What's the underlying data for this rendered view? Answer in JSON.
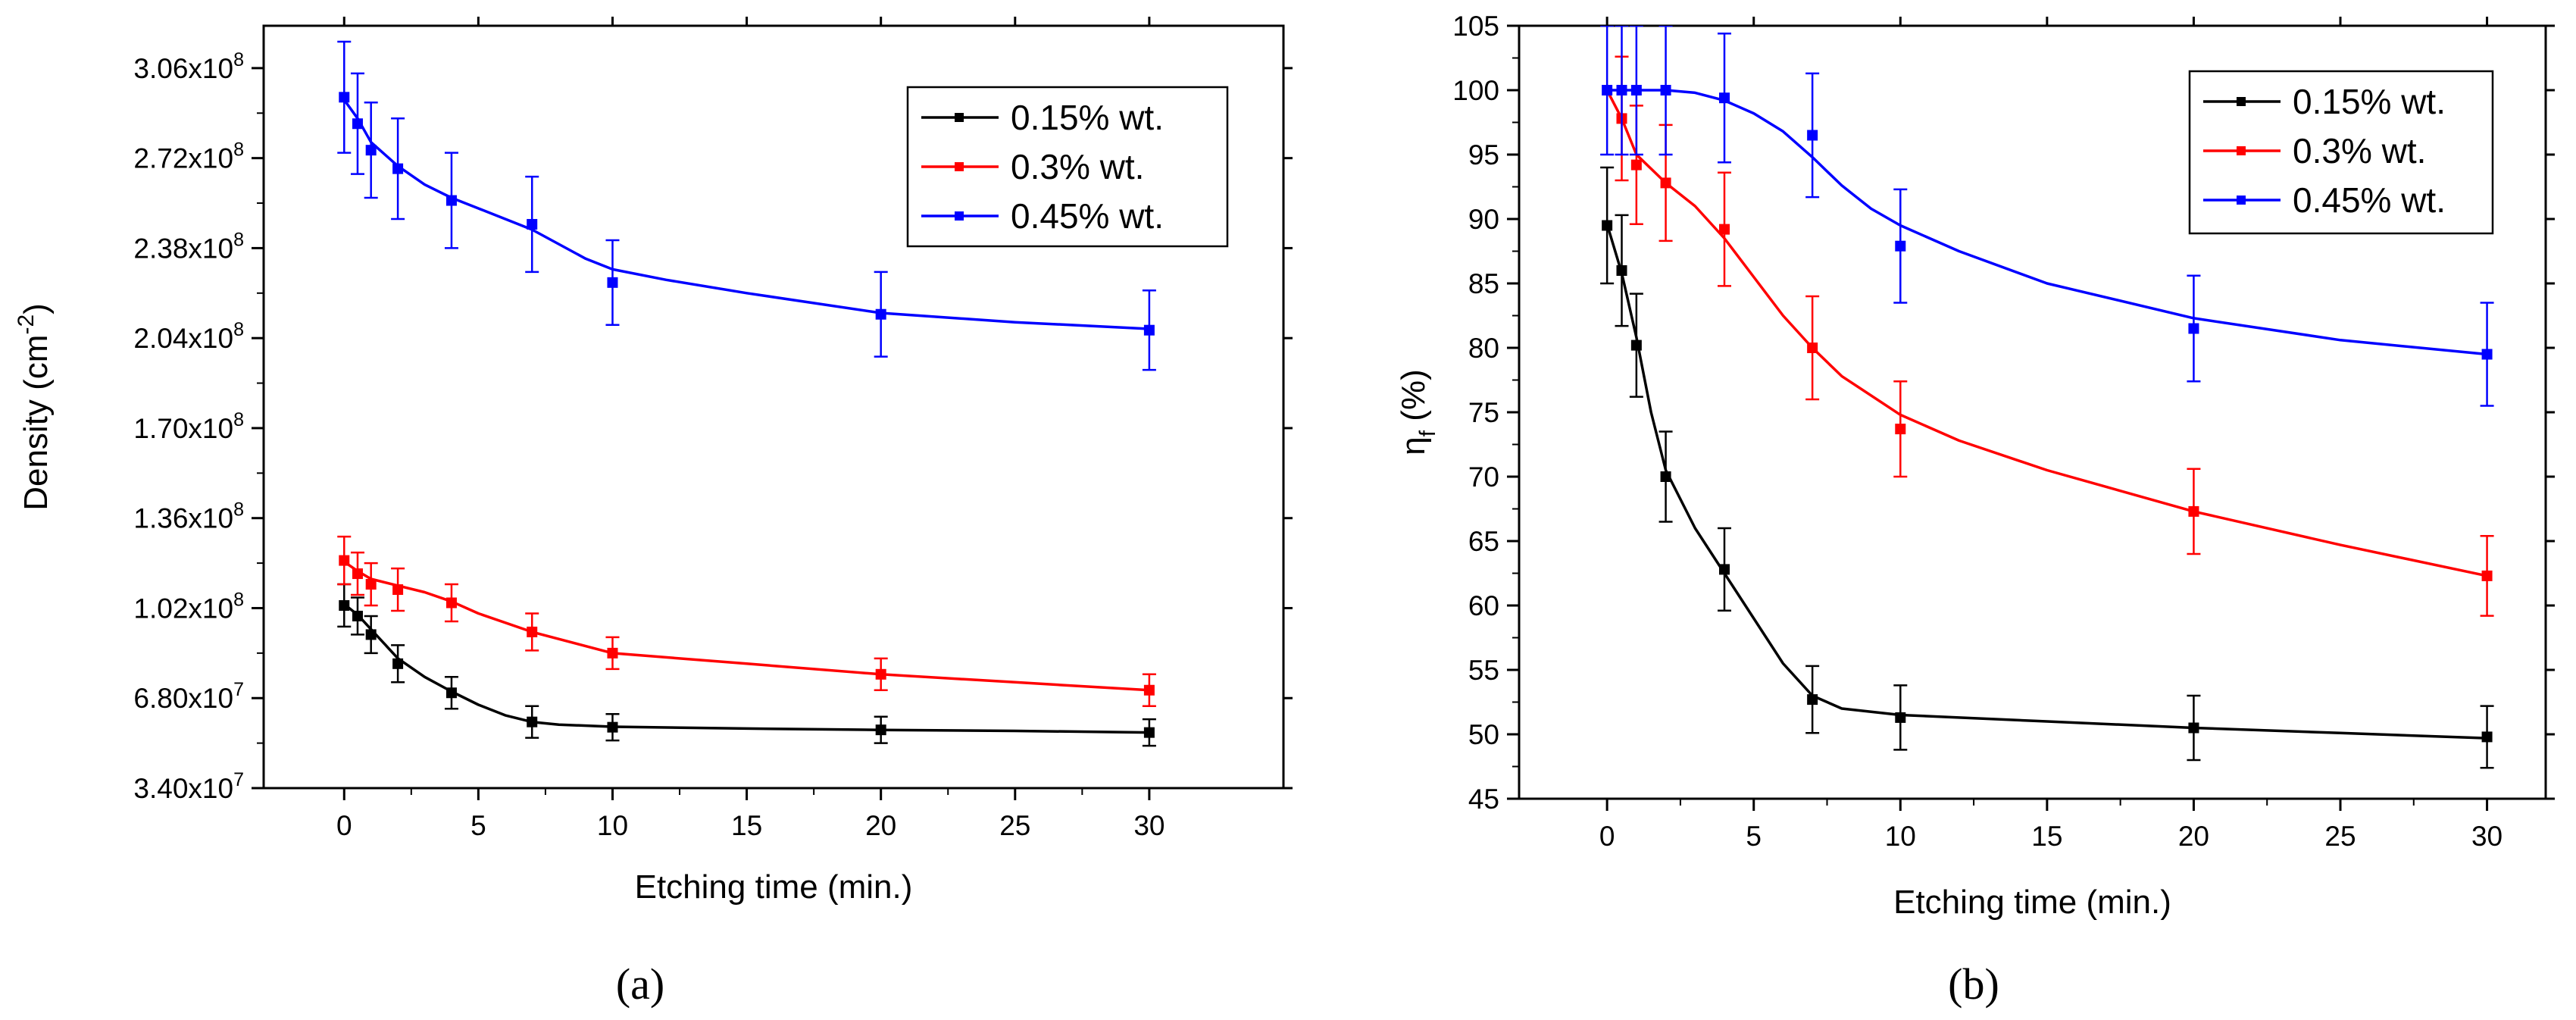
{
  "chart_data": [
    {
      "panel_label": "(a)",
      "panel_letter": "a",
      "type": "line",
      "xlabel": "Etching time (min.)",
      "ylabel": "Density (cm⁻²)",
      "ylabel_base": "Density (cm",
      "ylabel_exp": "-2",
      "ylabel_tail": ")",
      "xlim": [
        -3,
        35
      ],
      "ylim": [
        3.4,
        32.2
      ],
      "x_ticks": [
        {
          "value": 0,
          "label": "0"
        },
        {
          "value": 5,
          "label": "5"
        },
        {
          "value": 10,
          "label": "10"
        },
        {
          "value": 15,
          "label": "15"
        },
        {
          "value": 20,
          "label": "20"
        },
        {
          "value": 25,
          "label": "25"
        },
        {
          "value": 30,
          "label": "30"
        }
      ],
      "y_ticks": [
        {
          "value": 3.4,
          "mantissa": "3.40x10",
          "exp": "7"
        },
        {
          "value": 6.8,
          "mantissa": "6.80x10",
          "exp": "7"
        },
        {
          "value": 10.2,
          "mantissa": "1.02x10",
          "exp": "8"
        },
        {
          "value": 13.6,
          "mantissa": "1.36x10",
          "exp": "8"
        },
        {
          "value": 17.0,
          "mantissa": "1.70x10",
          "exp": "8"
        },
        {
          "value": 20.4,
          "mantissa": "2.04x10",
          "exp": "8"
        },
        {
          "value": 23.8,
          "mantissa": "2.38x10",
          "exp": "8"
        },
        {
          "value": 27.2,
          "mantissa": "2.72x10",
          "exp": "8"
        },
        {
          "value": 30.6,
          "mantissa": "3.06x10",
          "exp": "8"
        }
      ],
      "y_unit_note": "values in units of 1e7 cm^-2",
      "legend_position": "top-right",
      "series": [
        {
          "name": "0.15% wt.",
          "color": "#000000",
          "x": [
            0,
            0.5,
            1,
            2,
            4,
            7,
            10,
            20,
            30
          ],
          "y": [
            10.3,
            9.9,
            9.2,
            8.1,
            7.0,
            5.9,
            5.7,
            5.6,
            5.5
          ],
          "err": [
            0.8,
            0.7,
            0.7,
            0.7,
            0.6,
            0.6,
            0.5,
            0.5,
            0.5
          ],
          "fit": [
            [
              0,
              10.35
            ],
            [
              0.5,
              9.95
            ],
            [
              1,
              9.4
            ],
            [
              2,
              8.3
            ],
            [
              3,
              7.6
            ],
            [
              4,
              7.05
            ],
            [
              5,
              6.55
            ],
            [
              6,
              6.15
            ],
            [
              7,
              5.9
            ],
            [
              8,
              5.8
            ],
            [
              10,
              5.72
            ],
            [
              15,
              5.65
            ],
            [
              20,
              5.6
            ],
            [
              25,
              5.56
            ],
            [
              30,
              5.5
            ]
          ]
        },
        {
          "name": "0.3% wt.",
          "color": "#ff0000",
          "x": [
            0,
            0.5,
            1,
            2,
            4,
            7,
            10,
            20,
            30
          ],
          "y": [
            12.0,
            11.5,
            11.1,
            10.9,
            10.4,
            9.3,
            8.5,
            7.7,
            7.1
          ],
          "err": [
            0.9,
            0.8,
            0.8,
            0.8,
            0.7,
            0.7,
            0.6,
            0.6,
            0.6
          ],
          "fit": [
            [
              0,
              11.95
            ],
            [
              0.5,
              11.6
            ],
            [
              1,
              11.3
            ],
            [
              2,
              11.05
            ],
            [
              3,
              10.8
            ],
            [
              4,
              10.45
            ],
            [
              5,
              10.0
            ],
            [
              7,
              9.3
            ],
            [
              10,
              8.5
            ],
            [
              15,
              8.1
            ],
            [
              20,
              7.7
            ],
            [
              25,
              7.4
            ],
            [
              30,
              7.1
            ]
          ]
        },
        {
          "name": "0.45% wt.",
          "color": "#0000ff",
          "x": [
            0,
            0.5,
            1,
            2,
            4,
            7,
            10,
            20,
            30
          ],
          "y": [
            29.5,
            28.5,
            27.5,
            26.8,
            25.6,
            24.7,
            22.5,
            21.3,
            20.7
          ],
          "err": [
            2.1,
            1.9,
            1.8,
            1.9,
            1.8,
            1.8,
            1.6,
            1.6,
            1.5
          ],
          "fit": [
            [
              0,
              29.4
            ],
            [
              0.5,
              28.7
            ],
            [
              1,
              27.8
            ],
            [
              2,
              26.9
            ],
            [
              3,
              26.2
            ],
            [
              4,
              25.7
            ],
            [
              5,
              25.3
            ],
            [
              7,
              24.5
            ],
            [
              9,
              23.4
            ],
            [
              10,
              23.0
            ],
            [
              12,
              22.6
            ],
            [
              15,
              22.1
            ],
            [
              20,
              21.35
            ],
            [
              25,
              21.0
            ],
            [
              30,
              20.75
            ]
          ]
        }
      ]
    },
    {
      "panel_label": "(b)",
      "panel_letter": "b",
      "type": "line",
      "xlabel": "Etching time (min.)",
      "ylabel": "ηf (%)",
      "ylabel_base": "η",
      "ylabel_sub": "f",
      "ylabel_tail": " (%)",
      "xlim": [
        -3,
        32
      ],
      "ylim": [
        45,
        105
      ],
      "x_ticks": [
        {
          "value": 0,
          "label": "0"
        },
        {
          "value": 5,
          "label": "5"
        },
        {
          "value": 10,
          "label": "10"
        },
        {
          "value": 15,
          "label": "15"
        },
        {
          "value": 20,
          "label": "20"
        },
        {
          "value": 25,
          "label": "25"
        },
        {
          "value": 30,
          "label": "30"
        }
      ],
      "y_ticks": [
        {
          "value": 45,
          "label": "45"
        },
        {
          "value": 50,
          "label": "50"
        },
        {
          "value": 55,
          "label": "55"
        },
        {
          "value": 60,
          "label": "60"
        },
        {
          "value": 65,
          "label": "65"
        },
        {
          "value": 70,
          "label": "70"
        },
        {
          "value": 75,
          "label": "75"
        },
        {
          "value": 80,
          "label": "80"
        },
        {
          "value": 85,
          "label": "85"
        },
        {
          "value": 90,
          "label": "90"
        },
        {
          "value": 95,
          "label": "95"
        },
        {
          "value": 100,
          "label": "100"
        },
        {
          "value": 105,
          "label": "105"
        }
      ],
      "legend_position": "top-right",
      "series": [
        {
          "name": "0.15% wt.",
          "color": "#000000",
          "x": [
            0,
            0.5,
            1,
            2,
            4,
            7,
            10,
            20,
            30
          ],
          "y": [
            89.5,
            86.0,
            80.2,
            70.0,
            62.8,
            52.7,
            51.3,
            50.5,
            49.8
          ],
          "err": [
            4.5,
            4.3,
            4.0,
            3.5,
            3.2,
            2.6,
            2.5,
            2.5,
            2.4
          ],
          "fit": [
            [
              0,
              89.6
            ],
            [
              0.5,
              85.8
            ],
            [
              1,
              80.8
            ],
            [
              1.5,
              75.0
            ],
            [
              2,
              70.5
            ],
            [
              3,
              66.0
            ],
            [
              4,
              62.5
            ],
            [
              5,
              59.0
            ],
            [
              6,
              55.5
            ],
            [
              7,
              53.0
            ],
            [
              8,
              52.0
            ],
            [
              10,
              51.5
            ],
            [
              15,
              51.0
            ],
            [
              20,
              50.5
            ],
            [
              25,
              50.1
            ],
            [
              30,
              49.7
            ]
          ]
        },
        {
          "name": "0.3% wt.",
          "color": "#ff0000",
          "x": [
            0.5,
            1,
            2,
            4,
            7,
            10,
            20,
            30
          ],
          "y": [
            97.8,
            94.2,
            92.8,
            89.2,
            80.0,
            73.7,
            67.3,
            62.3
          ],
          "err": [
            4.8,
            4.6,
            4.5,
            4.4,
            4.0,
            3.7,
            3.3,
            3.1
          ],
          "fit": [
            [
              0,
              100
            ],
            [
              0.5,
              97.8
            ],
            [
              1,
              95.0
            ],
            [
              2,
              92.8
            ],
            [
              3,
              91.0
            ],
            [
              4,
              88.5
            ],
            [
              5,
              85.5
            ],
            [
              6,
              82.5
            ],
            [
              7,
              80.0
            ],
            [
              8,
              77.8
            ],
            [
              10,
              74.8
            ],
            [
              12,
              72.8
            ],
            [
              15,
              70.5
            ],
            [
              20,
              67.3
            ],
            [
              25,
              64.7
            ],
            [
              30,
              62.3
            ]
          ]
        },
        {
          "name": "0.45% wt.",
          "color": "#0000ff",
          "x": [
            0,
            0.5,
            1,
            2,
            4,
            7,
            10,
            20,
            30
          ],
          "y": [
            100,
            100,
            100,
            100,
            99.4,
            96.5,
            87.9,
            81.5,
            79.5
          ],
          "err": [
            5.0,
            5.0,
            5.0,
            5.0,
            5.0,
            4.8,
            4.4,
            4.1,
            4.0
          ],
          "fit": [
            [
              0,
              100
            ],
            [
              1,
              100
            ],
            [
              2,
              100
            ],
            [
              3,
              99.8
            ],
            [
              4,
              99.2
            ],
            [
              5,
              98.2
            ],
            [
              6,
              96.8
            ],
            [
              7,
              94.8
            ],
            [
              8,
              92.6
            ],
            [
              9,
              90.8
            ],
            [
              10,
              89.5
            ],
            [
              12,
              87.5
            ],
            [
              15,
              85.0
            ],
            [
              20,
              82.3
            ],
            [
              25,
              80.6
            ],
            [
              30,
              79.5
            ]
          ]
        }
      ]
    }
  ]
}
